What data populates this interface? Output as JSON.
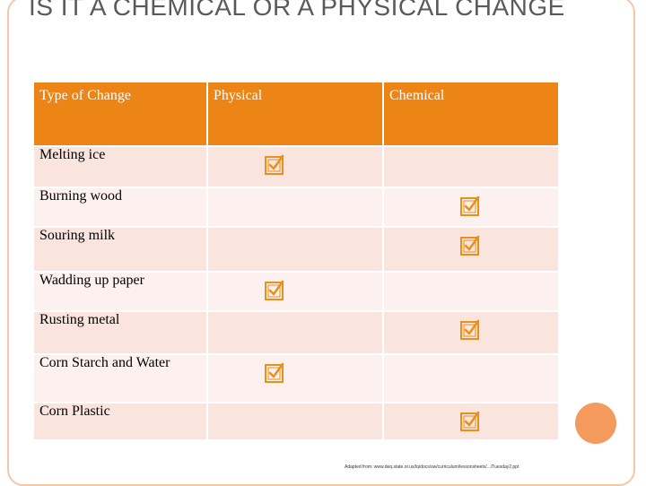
{
  "slide": {
    "title": "IS IT A CHEMICAL OR A PHYSICAL CHANGE",
    "credit": "Adapted from: www.deq.state.or.us/lq/docs/sw/curriculum/lessonsheets/.../Tuesday2.ppt"
  },
  "table": {
    "headers": [
      "Type of Change",
      "Physical",
      "Chemical"
    ],
    "rows": [
      {
        "label": "Melting ice",
        "physical": true,
        "chemical": false
      },
      {
        "label": "Burning wood",
        "physical": false,
        "chemical": true
      },
      {
        "label": "Souring milk",
        "physical": false,
        "chemical": true
      },
      {
        "label": "Wadding up paper",
        "physical": true,
        "chemical": false
      },
      {
        "label": "Rusting metal",
        "physical": false,
        "chemical": true
      },
      {
        "label": "Corn Starch and Water",
        "physical": true,
        "chemical": false
      },
      {
        "label": "Corn Plastic",
        "physical": false,
        "chemical": true
      }
    ]
  },
  "icons": {
    "check": "checkbox-checked-icon"
  },
  "colors": {
    "header": "#ec8416",
    "row_dark": "#f9e4de",
    "row_light": "#fcf1ee",
    "check": "#e8901c",
    "frame": "#f4c7a8",
    "circle": "#f59a5d"
  }
}
